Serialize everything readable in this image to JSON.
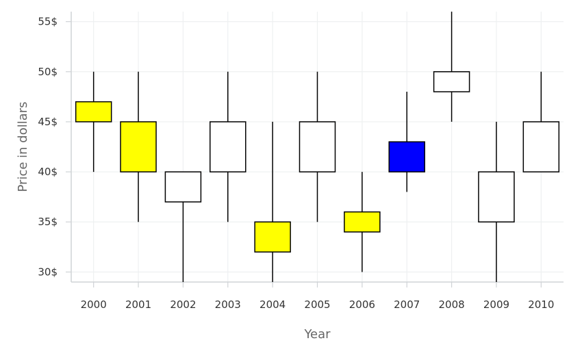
{
  "chart_data": {
    "type": "candlestick",
    "xlabel": "Year",
    "ylabel": "Price in dollars",
    "ylim": [
      29,
      56
    ],
    "y_ticks": [
      30,
      35,
      40,
      45,
      50,
      55
    ],
    "y_tick_suffix": "$",
    "grid": true,
    "categories": [
      "2000",
      "2001",
      "2002",
      "2003",
      "2004",
      "2005",
      "2006",
      "2007",
      "2008",
      "2009",
      "2010"
    ],
    "candles": [
      {
        "x": "2000",
        "open": 45,
        "close": 47,
        "high": 50,
        "low": 40,
        "color": "#ffff00"
      },
      {
        "x": "2001",
        "open": 45,
        "close": 40,
        "high": 50,
        "low": 35,
        "color": "#ffff00"
      },
      {
        "x": "2002",
        "open": 40,
        "close": 37,
        "high": 40,
        "low": 29,
        "color": "#ffffff"
      },
      {
        "x": "2003",
        "open": 40,
        "close": 45,
        "high": 50,
        "low": 35,
        "color": "#ffffff"
      },
      {
        "x": "2004",
        "open": 35,
        "close": 32,
        "high": 45,
        "low": 29,
        "color": "#ffff00"
      },
      {
        "x": "2005",
        "open": 40,
        "close": 45,
        "high": 50,
        "low": 35,
        "color": "#ffffff"
      },
      {
        "x": "2006",
        "open": 34,
        "close": 36,
        "high": 40,
        "low": 30,
        "color": "#ffff00"
      },
      {
        "x": "2007",
        "open": 40,
        "close": 43,
        "high": 48,
        "low": 38,
        "color": "#0000ff"
      },
      {
        "x": "2008",
        "open": 48,
        "close": 50,
        "high": 56,
        "low": 45,
        "color": "#ffffff"
      },
      {
        "x": "2009",
        "open": 40,
        "close": 35,
        "high": 45,
        "low": 29,
        "color": "#ffffff"
      },
      {
        "x": "2010",
        "open": 40,
        "close": 45,
        "high": 50,
        "low": 40,
        "color": "#ffffff"
      }
    ]
  }
}
